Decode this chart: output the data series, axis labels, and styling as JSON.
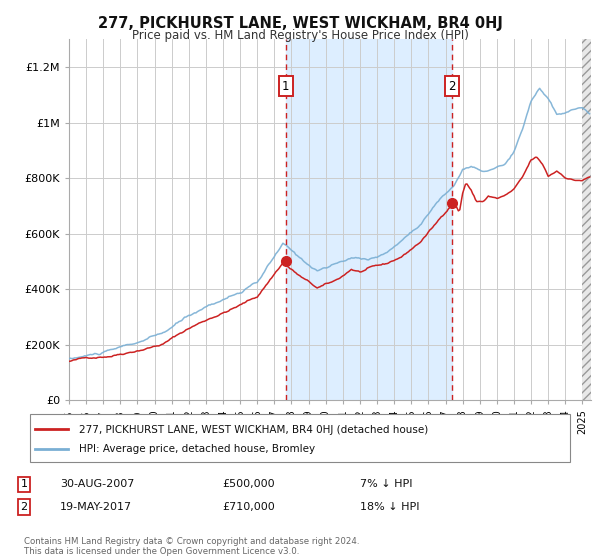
{
  "title": "277, PICKHURST LANE, WEST WICKHAM, BR4 0HJ",
  "subtitle": "Price paid vs. HM Land Registry's House Price Index (HPI)",
  "background_color": "#ffffff",
  "plot_bg_color": "#ffffff",
  "grid_color": "#cccccc",
  "shaded_region_color": "#ddeeff",
  "hpi_line_color": "#7aafd4",
  "price_line_color": "#cc2222",
  "marker_color": "#cc2222",
  "vline_color": "#cc2222",
  "ylim": [
    0,
    1300000
  ],
  "yticks": [
    0,
    200000,
    400000,
    600000,
    800000,
    1000000,
    1200000
  ],
  "ytick_labels": [
    "£0",
    "£200K",
    "£400K",
    "£600K",
    "£800K",
    "£1M",
    "£1.2M"
  ],
  "sale1_year": 2007.67,
  "sale1_price": 500000,
  "sale2_year": 2017.38,
  "sale2_price": 710000,
  "xmin": 1995.0,
  "xmax": 2025.5,
  "legend_line1": "277, PICKHURST LANE, WEST WICKHAM, BR4 0HJ (detached house)",
  "legend_line2": "HPI: Average price, detached house, Bromley",
  "annotation1": [
    "1",
    "30-AUG-2007",
    "£500,000",
    "7% ↓ HPI"
  ],
  "annotation2": [
    "2",
    "19-MAY-2017",
    "£710,000",
    "18% ↓ HPI"
  ],
  "footer": "Contains HM Land Registry data © Crown copyright and database right 2024.\nThis data is licensed under the Open Government Licence v3.0."
}
